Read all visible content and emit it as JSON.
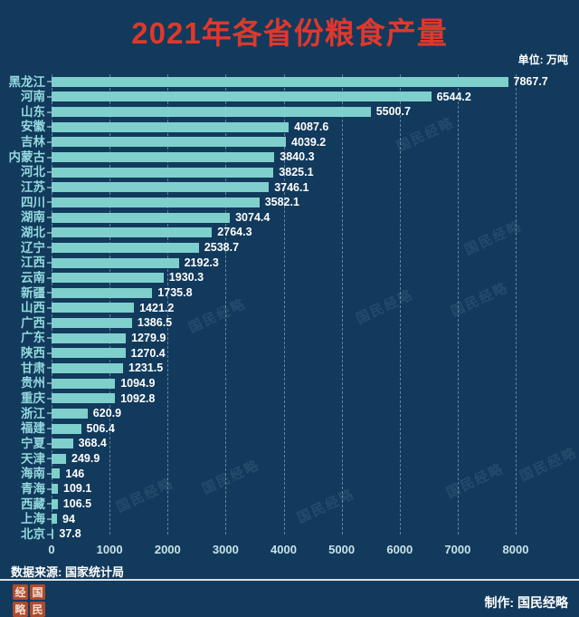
{
  "title": "2021年各省份粮食产量",
  "unit_label": "单位: 万吨",
  "watermark_text": "国民经略",
  "footer": {
    "source": "数据来源: 国家统计局",
    "credit": "制作: 国民经略",
    "seal_chars": [
      "经",
      "国",
      "略",
      "民"
    ]
  },
  "colors": {
    "background": "#123a5c",
    "bar": "#7fd0cc",
    "title": "#de382c",
    "province_label": "#93d8dd",
    "value_label": "#ffffff",
    "axis_label": "#c9e2e8",
    "seal": "#ae4a2d"
  },
  "chart_data": {
    "type": "bar",
    "orientation": "horizontal",
    "title": "2021年各省份粮食产量",
    "unit": "万吨",
    "categories": [
      "黑龙江",
      "河南",
      "山东",
      "安徽",
      "吉林",
      "内蒙古",
      "河北",
      "江苏",
      "四川",
      "湖南",
      "湖北",
      "辽宁",
      "江西",
      "云南",
      "新疆",
      "山西",
      "广西",
      "广东",
      "陕西",
      "甘肃",
      "贵州",
      "重庆",
      "浙江",
      "福建",
      "宁夏",
      "天津",
      "海南",
      "青海",
      "西藏",
      "上海",
      "北京"
    ],
    "values": [
      7867.7,
      6544.2,
      5500.7,
      4087.6,
      4039.2,
      3840.3,
      3825.1,
      3746.1,
      3582.1,
      3074.4,
      2764.3,
      2538.7,
      2192.3,
      1930.3,
      1735.8,
      1421.2,
      1386.5,
      1279.9,
      1270.4,
      1231.5,
      1094.9,
      1092.8,
      620.9,
      506.4,
      368.4,
      249.9,
      146,
      109.1,
      106.5,
      94,
      37.8
    ],
    "xlim": [
      0,
      8000
    ],
    "x_ticks": [
      0,
      1000,
      2000,
      3000,
      4000,
      5000,
      6000,
      7000,
      8000
    ],
    "grid": "dashed-vertical",
    "source": "数据来源: 国家统计局",
    "credit": "制作: 国民经略"
  }
}
